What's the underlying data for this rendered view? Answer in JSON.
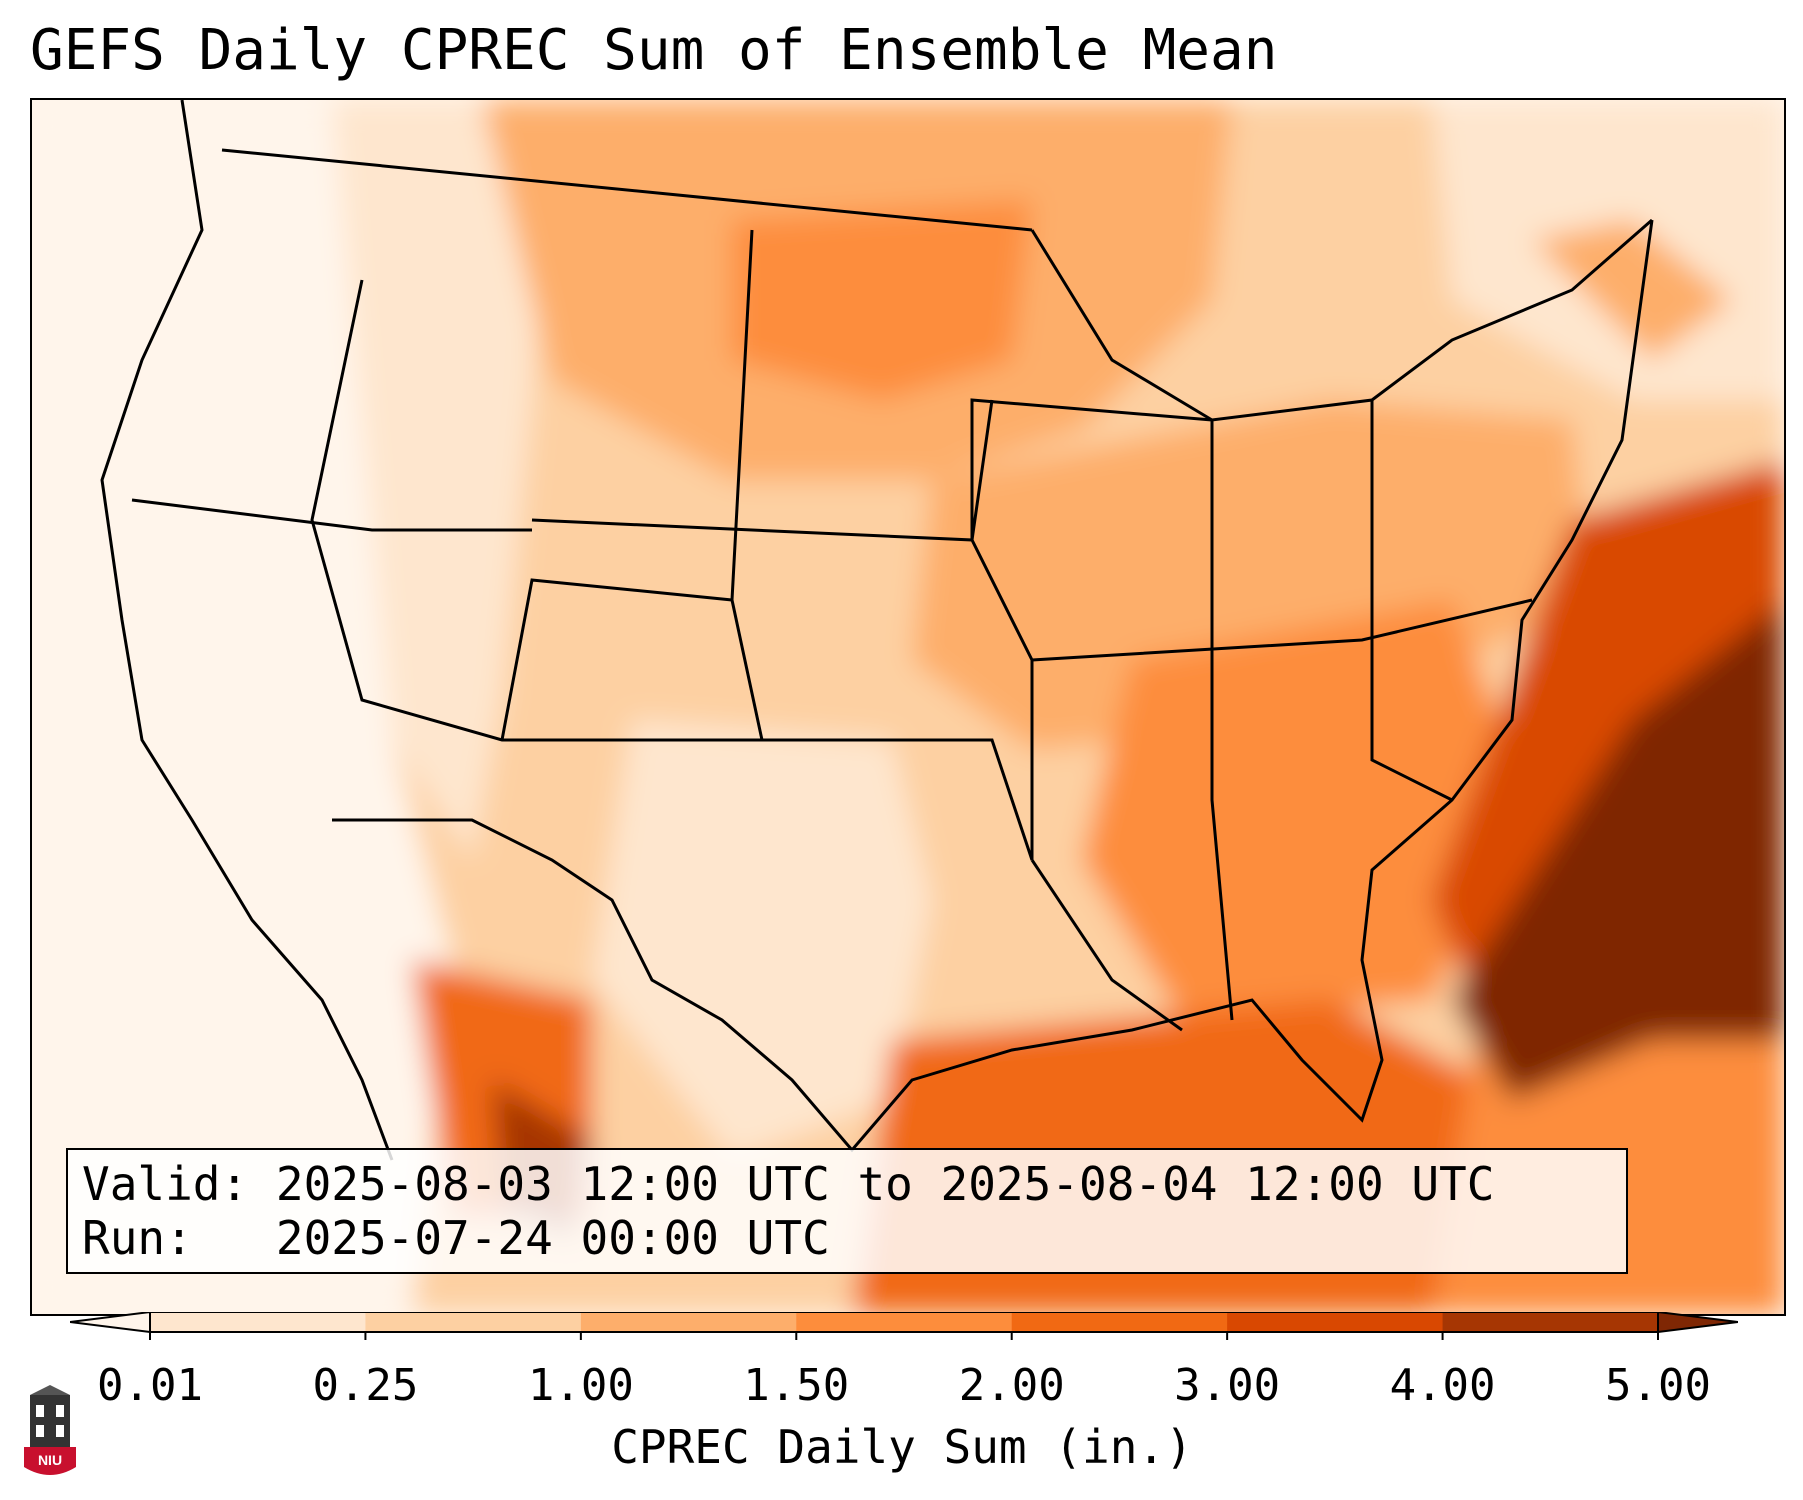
{
  "title": "GEFS Daily CPREC Sum of Ensemble Mean",
  "info": {
    "valid_label": "Valid:",
    "valid_value": "2025-08-03 12:00 UTC to 2025-08-04 12:00 UTC",
    "run_label": "Run:",
    "run_value": "2025-07-24 00:00 UTC"
  },
  "colorbar": {
    "label": "CPREC Daily Sum (in.)",
    "ticks": [
      "0.01",
      "0.25",
      "1.00",
      "1.50",
      "2.00",
      "3.00",
      "4.00",
      "5.00"
    ],
    "colors": [
      "#fff5eb",
      "#fee6ce",
      "#fdd0a2",
      "#fdae6b",
      "#fd8d3c",
      "#f16913",
      "#d94801",
      "#a63603",
      "#7f2704"
    ]
  },
  "map": {
    "projection": "Lambert conformal, CONUS",
    "field": "CPREC daily sum (in.)",
    "regions": [
      {
        "name": "western-coast-and-great-basin",
        "level": "0.01-0.25"
      },
      {
        "name": "rockies-and-southwest",
        "level": "0.25-1.00"
      },
      {
        "name": "northern-and-central-plains",
        "level": "1.00-2.00"
      },
      {
        "name": "southeast-and-gulf-coast",
        "level": "2.00-4.00"
      },
      {
        "name": "western-atlantic-offshore",
        "level": "5.00+"
      }
    ]
  },
  "logo": {
    "text": "NIU"
  }
}
